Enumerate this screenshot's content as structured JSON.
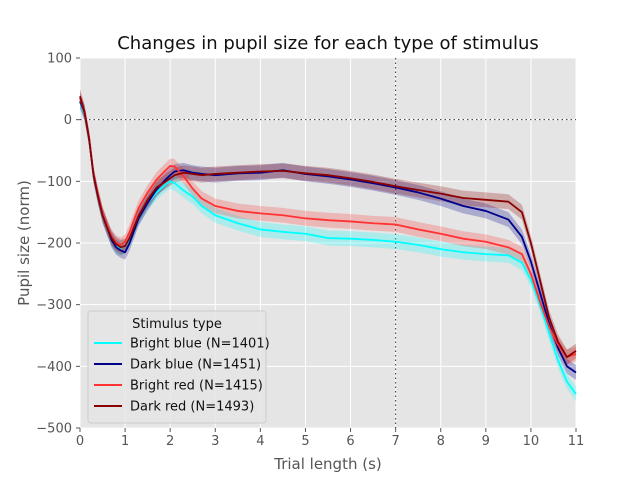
{
  "chart_data": {
    "type": "line",
    "title": "Changes in pupil size for each type of stimulus",
    "xlabel": "Trial length (s)",
    "ylabel": "Pupil size (norm)",
    "xlim": [
      0,
      11
    ],
    "ylim": [
      -500,
      100
    ],
    "xticks": [
      0,
      1,
      2,
      3,
      4,
      5,
      6,
      7,
      8,
      9,
      10,
      11
    ],
    "yticks": [
      100,
      0,
      -100,
      -200,
      -300,
      -400,
      -500
    ],
    "xtick_labels": [
      "0",
      "1",
      "2",
      "3",
      "4",
      "5",
      "6",
      "7",
      "8",
      "9",
      "10",
      "11"
    ],
    "ytick_labels": [
      "100",
      "0",
      "−100",
      "−200",
      "−300",
      "−400",
      "−500"
    ],
    "grid": true,
    "reference_lines": {
      "hline_y": 0,
      "vline_x": 7,
      "style": "dotted"
    },
    "legend": {
      "title": "Stimulus type",
      "placement": "lower-left"
    },
    "x": [
      0,
      0.1,
      0.2,
      0.3,
      0.4,
      0.5,
      0.6,
      0.7,
      0.8,
      0.9,
      1.0,
      1.1,
      1.2,
      1.3,
      1.5,
      1.7,
      1.9,
      2.0,
      2.1,
      2.3,
      2.5,
      2.7,
      3.0,
      3.5,
      4.0,
      4.5,
      5.0,
      5.5,
      6.0,
      6.5,
      7.0,
      7.5,
      8.0,
      8.5,
      9.0,
      9.5,
      9.8,
      10.0,
      10.2,
      10.4,
      10.6,
      10.8,
      11.0
    ],
    "series": [
      {
        "name": "Bright blue (N=1401)",
        "color": "#00ffff",
        "band": 12,
        "values": [
          28,
          10,
          -30,
          -90,
          -125,
          -155,
          -175,
          -195,
          -205,
          -208,
          -205,
          -195,
          -178,
          -160,
          -135,
          -118,
          -105,
          -100,
          -103,
          -115,
          -125,
          -140,
          -155,
          -168,
          -178,
          -182,
          -185,
          -192,
          -193,
          -195,
          -198,
          -203,
          -210,
          -215,
          -218,
          -220,
          -232,
          -260,
          -300,
          -345,
          -390,
          -425,
          -445
        ]
      },
      {
        "name": "Dark blue (N=1451)",
        "color": "#00008b",
        "band": 12,
        "values": [
          30,
          12,
          -30,
          -90,
          -125,
          -155,
          -175,
          -195,
          -207,
          -212,
          -215,
          -200,
          -180,
          -160,
          -135,
          -113,
          -97,
          -90,
          -84,
          -82,
          -86,
          -88,
          -90,
          -87,
          -86,
          -82,
          -88,
          -92,
          -97,
          -103,
          -110,
          -118,
          -128,
          -140,
          -148,
          -162,
          -190,
          -230,
          -280,
          -330,
          -370,
          -400,
          -410
        ]
      },
      {
        "name": "Bright red (N=1415)",
        "color": "#ff3333",
        "band": 12,
        "values": [
          35,
          12,
          -28,
          -88,
          -122,
          -152,
          -172,
          -190,
          -200,
          -203,
          -198,
          -182,
          -162,
          -143,
          -118,
          -97,
          -82,
          -75,
          -76,
          -92,
          -112,
          -128,
          -140,
          -148,
          -152,
          -155,
          -160,
          -163,
          -165,
          -168,
          -170,
          -178,
          -185,
          -193,
          -198,
          -207,
          -218,
          -250,
          -295,
          -335,
          -365,
          -385,
          -380
        ]
      },
      {
        "name": "Dark red  (N=1493)",
        "color": "#8b0000",
        "band": 12,
        "values": [
          38,
          12,
          -30,
          -90,
          -125,
          -155,
          -175,
          -192,
          -202,
          -207,
          -205,
          -192,
          -174,
          -156,
          -130,
          -110,
          -100,
          -95,
          -90,
          -86,
          -88,
          -90,
          -88,
          -86,
          -84,
          -83,
          -87,
          -90,
          -95,
          -101,
          -108,
          -114,
          -120,
          -127,
          -130,
          -133,
          -150,
          -200,
          -260,
          -320,
          -360,
          -385,
          -375
        ]
      }
    ]
  }
}
